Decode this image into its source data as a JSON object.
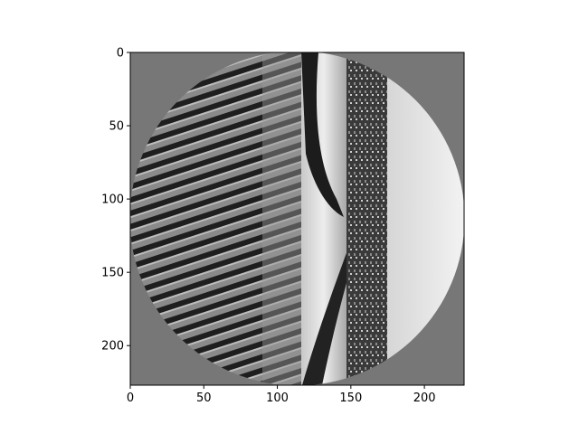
{
  "chart_data": {
    "type": "image",
    "xlim": [
      0,
      227
    ],
    "ylim": [
      227,
      0
    ],
    "xticks": [
      0,
      50,
      100,
      150,
      200
    ],
    "yticks": [
      0,
      50,
      100,
      150,
      200
    ],
    "xtick_labels": [
      "0",
      "50",
      "100",
      "150",
      "200"
    ],
    "ytick_labels": [
      "0",
      "50",
      "100",
      "150",
      "200"
    ],
    "image": {
      "width": 227,
      "height": 227,
      "background_color": "#777777",
      "circular_mask": true,
      "content": "grayscale image in a circular mask: dark/light striped sand ripples on the left, a smooth bright dune band with a dark diagonal shadow in the middle, a dark vertical strip of vegetation and a bright sky-like region on the right"
    }
  }
}
